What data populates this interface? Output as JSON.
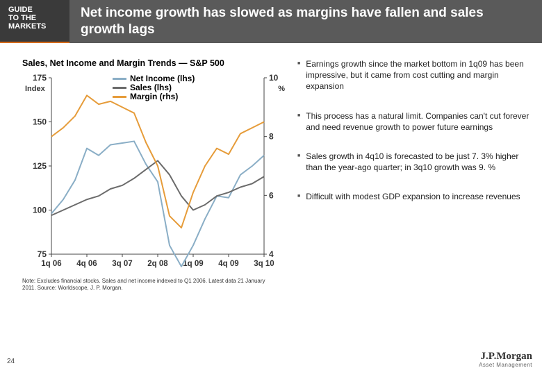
{
  "header": {
    "guide_line1": "GUIDE",
    "guide_line2": "TO THE",
    "guide_line3": "MARKETS",
    "title": "Net income growth has slowed as margins have fallen and sales growth lags"
  },
  "chart": {
    "title": "Sales, Net Income and Margin Trends — S&P 500",
    "type": "line",
    "left_axis_label": "Index",
    "right_axis_label": "%",
    "left_axis": {
      "min": 75,
      "max": 175,
      "step": 25,
      "ticks": [
        75,
        100,
        125,
        150,
        175
      ]
    },
    "right_axis": {
      "min": 4,
      "max": 10,
      "step": 2,
      "ticks": [
        4,
        6,
        8,
        10
      ]
    },
    "x_labels": [
      "1q 06",
      "4q 06",
      "3q 07",
      "2q 08",
      "1q 09",
      "4q 09",
      "3q 10"
    ],
    "series": [
      {
        "name": "Net Income (lhs)",
        "color": "#8aaec6",
        "width": 2,
        "axis": "left",
        "data": [
          98,
          106,
          117,
          135,
          131,
          137,
          138,
          139,
          126,
          116,
          80,
          68,
          80,
          95,
          108,
          107,
          120,
          125,
          131
        ]
      },
      {
        "name": "Sales (lhs)",
        "color": "#6b6b6b",
        "width": 2,
        "axis": "left",
        "data": [
          97,
          100,
          103,
          106,
          108,
          112,
          114,
          118,
          123,
          128,
          120,
          108,
          100,
          103,
          108,
          110,
          113,
          115,
          119
        ]
      },
      {
        "name": "Margin (rhs)",
        "color": "#e69c3a",
        "width": 2,
        "axis": "right",
        "data": [
          8.0,
          8.3,
          8.7,
          9.4,
          9.1,
          9.2,
          9.0,
          8.8,
          7.8,
          7.0,
          5.3,
          4.9,
          6.1,
          7.0,
          7.6,
          7.4,
          8.1,
          8.3,
          8.5
        ]
      }
    ],
    "grid_color": "#cccccc",
    "background_color": "#ffffff",
    "axis_color": "#444444",
    "tick_fontsize": 12,
    "tick_fontweight": "bold",
    "note": "Note: Excludes financial stocks. Sales and net income indexed to Q1 2006. Latest data 21 January 2011. Source: Worldscope, J. P. Morgan."
  },
  "bullets": [
    "Earnings growth since the market bottom in 1q09 has been impressive, but it came from cost cutting and margin expansion",
    "This process has a natural limit. Companies can't cut forever and need revenue growth to power future earnings",
    "Sales growth in 4q10 is forecasted to be just 7. 3% higher than the year-ago quarter; in 3q10 growth was 9. %",
    "Difficult with modest GDP expansion to increase revenues"
  ],
  "page_number": "24",
  "brand": {
    "name": "J.P.Morgan",
    "sub": "Asset Management"
  }
}
